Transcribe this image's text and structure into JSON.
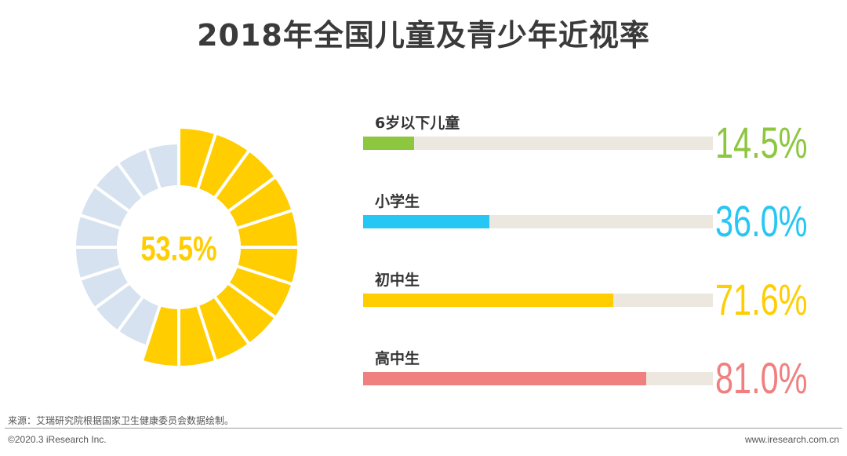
{
  "title": "2018年全国儿童及青少年近视率",
  "source": "来源：艾瑞研究院根据国家卫生健康委员会数据绘制。",
  "footer": {
    "copyright": "©2020.3 iResearch Inc.",
    "website": "www.iresearch.com.cn"
  },
  "colors": {
    "donut_fill": "#ffcd00",
    "donut_track": "#d6e2f0",
    "center_text": "#ffcd00",
    "bar_track": "#ece8df"
  },
  "chart_data": [
    {
      "type": "pie",
      "center_label": "53.5%",
      "value": 53.5,
      "max": 100,
      "segments": 20
    },
    {
      "type": "bar",
      "orientation": "horizontal",
      "categories": [
        "6岁以下儿童",
        "小学生",
        "初中生",
        "高中生"
      ],
      "values": [
        14.5,
        36.0,
        71.6,
        81.0
      ],
      "value_labels": [
        "14.5%",
        "36.0%",
        "71.6%",
        "81.0%"
      ],
      "colors": [
        "#8dc63f",
        "#26c6f5",
        "#ffcd00",
        "#f08080"
      ],
      "xlim": [
        0,
        100
      ],
      "grid": false
    }
  ]
}
